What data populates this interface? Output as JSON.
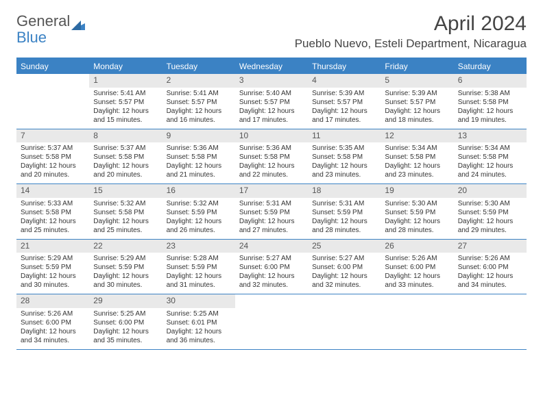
{
  "logo": {
    "text_general": "General",
    "text_blue": "Blue"
  },
  "title": "April 2024",
  "location": "Pueblo Nuevo, Esteli Department, Nicaragua",
  "weekdays": [
    "Sunday",
    "Monday",
    "Tuesday",
    "Wednesday",
    "Thursday",
    "Friday",
    "Saturday"
  ],
  "colors": {
    "header_bg": "#3b82c4",
    "daynum_bg": "#e9e9e9",
    "text": "#333333",
    "title_text": "#444444"
  },
  "weeks": [
    [
      null,
      {
        "n": "1",
        "sr": "Sunrise: 5:41 AM",
        "ss": "Sunset: 5:57 PM",
        "dl": "Daylight: 12 hours and 15 minutes."
      },
      {
        "n": "2",
        "sr": "Sunrise: 5:41 AM",
        "ss": "Sunset: 5:57 PM",
        "dl": "Daylight: 12 hours and 16 minutes."
      },
      {
        "n": "3",
        "sr": "Sunrise: 5:40 AM",
        "ss": "Sunset: 5:57 PM",
        "dl": "Daylight: 12 hours and 17 minutes."
      },
      {
        "n": "4",
        "sr": "Sunrise: 5:39 AM",
        "ss": "Sunset: 5:57 PM",
        "dl": "Daylight: 12 hours and 17 minutes."
      },
      {
        "n": "5",
        "sr": "Sunrise: 5:39 AM",
        "ss": "Sunset: 5:57 PM",
        "dl": "Daylight: 12 hours and 18 minutes."
      },
      {
        "n": "6",
        "sr": "Sunrise: 5:38 AM",
        "ss": "Sunset: 5:58 PM",
        "dl": "Daylight: 12 hours and 19 minutes."
      }
    ],
    [
      {
        "n": "7",
        "sr": "Sunrise: 5:37 AM",
        "ss": "Sunset: 5:58 PM",
        "dl": "Daylight: 12 hours and 20 minutes."
      },
      {
        "n": "8",
        "sr": "Sunrise: 5:37 AM",
        "ss": "Sunset: 5:58 PM",
        "dl": "Daylight: 12 hours and 20 minutes."
      },
      {
        "n": "9",
        "sr": "Sunrise: 5:36 AM",
        "ss": "Sunset: 5:58 PM",
        "dl": "Daylight: 12 hours and 21 minutes."
      },
      {
        "n": "10",
        "sr": "Sunrise: 5:36 AM",
        "ss": "Sunset: 5:58 PM",
        "dl": "Daylight: 12 hours and 22 minutes."
      },
      {
        "n": "11",
        "sr": "Sunrise: 5:35 AM",
        "ss": "Sunset: 5:58 PM",
        "dl": "Daylight: 12 hours and 23 minutes."
      },
      {
        "n": "12",
        "sr": "Sunrise: 5:34 AM",
        "ss": "Sunset: 5:58 PM",
        "dl": "Daylight: 12 hours and 23 minutes."
      },
      {
        "n": "13",
        "sr": "Sunrise: 5:34 AM",
        "ss": "Sunset: 5:58 PM",
        "dl": "Daylight: 12 hours and 24 minutes."
      }
    ],
    [
      {
        "n": "14",
        "sr": "Sunrise: 5:33 AM",
        "ss": "Sunset: 5:58 PM",
        "dl": "Daylight: 12 hours and 25 minutes."
      },
      {
        "n": "15",
        "sr": "Sunrise: 5:32 AM",
        "ss": "Sunset: 5:58 PM",
        "dl": "Daylight: 12 hours and 25 minutes."
      },
      {
        "n": "16",
        "sr": "Sunrise: 5:32 AM",
        "ss": "Sunset: 5:59 PM",
        "dl": "Daylight: 12 hours and 26 minutes."
      },
      {
        "n": "17",
        "sr": "Sunrise: 5:31 AM",
        "ss": "Sunset: 5:59 PM",
        "dl": "Daylight: 12 hours and 27 minutes."
      },
      {
        "n": "18",
        "sr": "Sunrise: 5:31 AM",
        "ss": "Sunset: 5:59 PM",
        "dl": "Daylight: 12 hours and 28 minutes."
      },
      {
        "n": "19",
        "sr": "Sunrise: 5:30 AM",
        "ss": "Sunset: 5:59 PM",
        "dl": "Daylight: 12 hours and 28 minutes."
      },
      {
        "n": "20",
        "sr": "Sunrise: 5:30 AM",
        "ss": "Sunset: 5:59 PM",
        "dl": "Daylight: 12 hours and 29 minutes."
      }
    ],
    [
      {
        "n": "21",
        "sr": "Sunrise: 5:29 AM",
        "ss": "Sunset: 5:59 PM",
        "dl": "Daylight: 12 hours and 30 minutes."
      },
      {
        "n": "22",
        "sr": "Sunrise: 5:29 AM",
        "ss": "Sunset: 5:59 PM",
        "dl": "Daylight: 12 hours and 30 minutes."
      },
      {
        "n": "23",
        "sr": "Sunrise: 5:28 AM",
        "ss": "Sunset: 5:59 PM",
        "dl": "Daylight: 12 hours and 31 minutes."
      },
      {
        "n": "24",
        "sr": "Sunrise: 5:27 AM",
        "ss": "Sunset: 6:00 PM",
        "dl": "Daylight: 12 hours and 32 minutes."
      },
      {
        "n": "25",
        "sr": "Sunrise: 5:27 AM",
        "ss": "Sunset: 6:00 PM",
        "dl": "Daylight: 12 hours and 32 minutes."
      },
      {
        "n": "26",
        "sr": "Sunrise: 5:26 AM",
        "ss": "Sunset: 6:00 PM",
        "dl": "Daylight: 12 hours and 33 minutes."
      },
      {
        "n": "27",
        "sr": "Sunrise: 5:26 AM",
        "ss": "Sunset: 6:00 PM",
        "dl": "Daylight: 12 hours and 34 minutes."
      }
    ],
    [
      {
        "n": "28",
        "sr": "Sunrise: 5:26 AM",
        "ss": "Sunset: 6:00 PM",
        "dl": "Daylight: 12 hours and 34 minutes."
      },
      {
        "n": "29",
        "sr": "Sunrise: 5:25 AM",
        "ss": "Sunset: 6:00 PM",
        "dl": "Daylight: 12 hours and 35 minutes."
      },
      {
        "n": "30",
        "sr": "Sunrise: 5:25 AM",
        "ss": "Sunset: 6:01 PM",
        "dl": "Daylight: 12 hours and 36 minutes."
      },
      null,
      null,
      null,
      null
    ]
  ]
}
